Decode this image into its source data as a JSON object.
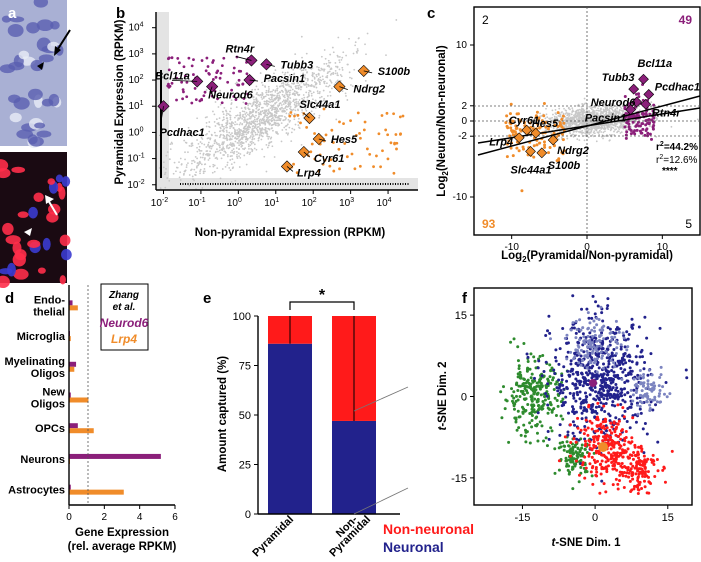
{
  "panels": {
    "a": "a",
    "b": "b",
    "c": "c",
    "d": "d",
    "e": "e",
    "f": "f"
  },
  "colors": {
    "purple": "#8b1f7a",
    "orange": "#f08c2a",
    "gray": "#c8c8c8",
    "red": "#ff1a1a",
    "navy": "#22228c",
    "green": "#2e8b2e",
    "light_navy": "#7c84c0"
  },
  "chart_data": [
    {
      "id": "b",
      "type": "scatter",
      "xlabel": "Non-pyramidal Expression (RPKM)",
      "ylabel": "Pyramidal Expression (RPKM)",
      "x_ticks": [
        "10^-2",
        "10^-1",
        "10^0",
        "10^1",
        "10^2",
        "10^3",
        "10^4"
      ],
      "x_tick_base": [
        "10",
        "10",
        "10",
        "10",
        "10",
        "10",
        "10"
      ],
      "x_tick_exp": [
        "-2",
        "-1",
        "0",
        "1",
        "2",
        "3",
        "4"
      ],
      "y_ticks": [
        "10^-2",
        "10^-1",
        "10^0",
        "10^1",
        "10^2",
        "10^3",
        "10^4"
      ],
      "y_tick_base": [
        "10",
        "10",
        "10",
        "10",
        "10",
        "10",
        "10"
      ],
      "y_tick_exp": [
        "-2",
        "-1",
        "0",
        "1",
        "2",
        "3",
        "4"
      ],
      "xlim_log10": [
        -2.2,
        4.8
      ],
      "ylim_log10": [
        -2.2,
        4.6
      ],
      "highlighted_genes": [
        {
          "name": "Rtn4r",
          "x_log10": 0.35,
          "y_log10": 2.75,
          "group": "neuronal"
        },
        {
          "name": "Tubb3",
          "x_log10": 0.75,
          "y_log10": 2.6,
          "group": "neuronal"
        },
        {
          "name": "Bcl11a",
          "x_log10": -1.1,
          "y_log10": 1.95,
          "group": "neuronal"
        },
        {
          "name": "Pacsin1",
          "x_log10": 0.3,
          "y_log10": 2.0,
          "group": "neuronal"
        },
        {
          "name": "Neurod6",
          "x_log10": -0.7,
          "y_log10": 1.75,
          "group": "neuronal"
        },
        {
          "name": "Pcdhac1",
          "x_log10": -2.0,
          "y_log10": 1.0,
          "group": "neuronal"
        },
        {
          "name": "S100b",
          "x_log10": 3.35,
          "y_log10": 2.35,
          "group": "non-neuronal"
        },
        {
          "name": "Ndrg2",
          "x_log10": 2.7,
          "y_log10": 1.75,
          "group": "non-neuronal"
        },
        {
          "name": "Slc44a1",
          "x_log10": 1.9,
          "y_log10": 0.55,
          "group": "non-neuronal"
        },
        {
          "name": "Hes5",
          "x_log10": 2.15,
          "y_log10": -0.25,
          "group": "non-neuronal"
        },
        {
          "name": "Cyr61",
          "x_log10": 1.75,
          "y_log10": -0.75,
          "group": "non-neuronal"
        },
        {
          "name": "Lrp4",
          "x_log10": 1.3,
          "y_log10": -1.3,
          "group": "non-neuronal"
        }
      ]
    },
    {
      "id": "c",
      "type": "scatter",
      "xlabel": "Log2(Pyramidal/Non-pyramidal)",
      "xlabel_main": "Log",
      "xlabel_sub": "2",
      "xlabel_tail": "(Pyramidal/Non-pyramidal)",
      "ylabel": "Log2(Neuron/Non-neuronal)",
      "ylabel_main": "Log",
      "ylabel_sub": "2",
      "ylabel_tail": "(Neuron/Non-neuronal)",
      "x_ticks": [
        -10,
        0,
        10
      ],
      "y_ticks": [
        -10,
        -2,
        0,
        2,
        10
      ],
      "xlim": [
        -15,
        15
      ],
      "ylim": [
        -15,
        15
      ],
      "quadrant_counts": {
        "q2": "2",
        "q1": "49",
        "q3": "93",
        "q4": "5"
      },
      "r2_labels": {
        "r2_a_main": "r",
        "r2_a_sup": "2",
        "r2_a_val": "=44.2%",
        "r2_b_main": "r",
        "r2_b_sup": "2",
        "r2_b_val": "=12.6%",
        "sig": "****"
      },
      "highlighted_genes": [
        {
          "name": "Bcl11a",
          "x": 7.5,
          "y": 5.5,
          "group": "neuronal"
        },
        {
          "name": "Tubb3",
          "x": 6.2,
          "y": 4.2,
          "group": "neuronal"
        },
        {
          "name": "Pcdhac1",
          "x": 8.2,
          "y": 3.5,
          "group": "neuronal"
        },
        {
          "name": "Neurod6",
          "x": 6.6,
          "y": 2.5,
          "group": "neuronal"
        },
        {
          "name": "Rtn4r",
          "x": 7.8,
          "y": 2.2,
          "group": "neuronal"
        },
        {
          "name": "Pacsin1",
          "x": 5.8,
          "y": 1.5,
          "group": "neuronal"
        },
        {
          "name": "Cyr61",
          "x": -8.0,
          "y": -1.2,
          "group": "non-neuronal"
        },
        {
          "name": "Hes5",
          "x": -6.8,
          "y": -1.6,
          "group": "non-neuronal"
        },
        {
          "name": "Lrp4",
          "x": -9.0,
          "y": -2.2,
          "group": "non-neuronal"
        },
        {
          "name": "Ndrg2",
          "x": -4.5,
          "y": -2.5,
          "group": "non-neuronal"
        },
        {
          "name": "Slc44a1",
          "x": -7.5,
          "y": -4.0,
          "group": "non-neuronal"
        },
        {
          "name": "S100b",
          "x": -6.0,
          "y": -4.2,
          "group": "non-neuronal"
        }
      ]
    },
    {
      "id": "d",
      "type": "bar",
      "orientation": "horizontal",
      "categories": [
        "Endo-thelial",
        "Microglia",
        "Myelinating Oligos",
        "New Oligos",
        "OPCs",
        "Neurons",
        "Astrocytes"
      ],
      "category_lines": [
        [
          "Endo-",
          "thelial"
        ],
        [
          "Microglia"
        ],
        [
          "Myelinating",
          "Oligos"
        ],
        [
          "New",
          "Oligos"
        ],
        [
          "OPCs"
        ],
        [
          "Neurons"
        ],
        [
          "Astrocytes"
        ]
      ],
      "series": [
        {
          "name": "Neurod6",
          "values": [
            0.2,
            0.05,
            0.4,
            0.1,
            0.5,
            5.2,
            0.1
          ]
        },
        {
          "name": "Lrp4",
          "values": [
            0.5,
            0.1,
            0.3,
            1.1,
            1.4,
            0.05,
            3.1
          ]
        }
      ],
      "legend_title_1": "Zhang",
      "legend_title_2": "et al.",
      "xlabel_1": "Gene Expression",
      "xlabel_2": "(rel. average RPKM)",
      "x_ticks": [
        "0",
        "2",
        "4",
        "6"
      ],
      "xlim": [
        0,
        6
      ],
      "reference_line": 1
    },
    {
      "id": "e",
      "type": "bar",
      "stacked": true,
      "categories": [
        "Pyramidal",
        "Non-Pyramidal"
      ],
      "category_lines": [
        [
          "Pyramidal"
        ],
        [
          "Non-",
          "Pyramidal"
        ]
      ],
      "series": [
        {
          "name": "Neuronal",
          "values": [
            86,
            47
          ]
        },
        {
          "name": "Non-neuronal",
          "values": [
            14,
            53
          ]
        }
      ],
      "ylabel": "Amount captured (%)",
      "y_ticks": [
        "0",
        "25",
        "50",
        "75",
        "100"
      ],
      "ylim": [
        0,
        100
      ],
      "significance": "*"
    },
    {
      "id": "f",
      "type": "scatter",
      "xlabel_main": "t",
      "xlabel_tail": "-SNE Dim. 1",
      "ylabel_main": "t",
      "ylabel_tail": "-SNE Dim. 2",
      "x_ticks": [
        "-15",
        "0",
        "15"
      ],
      "y_ticks": [
        "-15",
        "0",
        "15"
      ],
      "xlim": [
        -25,
        20
      ],
      "ylim": [
        -20,
        20
      ],
      "clusters": [
        {
          "name": "green-1",
          "cx": -13,
          "cy": 0,
          "sx": 3.0,
          "sy": 3.5,
          "n": 260,
          "color": "green"
        },
        {
          "name": "green-2",
          "cx": -4,
          "cy": -11,
          "sx": 1.8,
          "sy": 1.8,
          "n": 110,
          "color": "green"
        },
        {
          "name": "navy",
          "cx": 1,
          "cy": 3,
          "sx": 5,
          "sy": 5.5,
          "n": 620,
          "color": "navy"
        },
        {
          "name": "light-navy-1",
          "cx": 0,
          "cy": 10,
          "sx": 3,
          "sy": 2.5,
          "n": 120,
          "color": "light_navy"
        },
        {
          "name": "light-navy-2",
          "cx": 11,
          "cy": 1,
          "sx": 1.8,
          "sy": 1.8,
          "n": 80,
          "color": "light_navy"
        },
        {
          "name": "red-1",
          "cx": 2,
          "cy": -9,
          "sx": 3,
          "sy": 3,
          "n": 230,
          "color": "red"
        },
        {
          "name": "red-2",
          "cx": 8,
          "cy": -13,
          "sx": 2.4,
          "sy": 2.4,
          "n": 150,
          "color": "red"
        }
      ]
    }
  ],
  "legends": {
    "neurod6": "Neurod6",
    "lrp4": "Lrp4",
    "non_neuronal": "Non-neuronal",
    "neuronal": "Neuronal"
  }
}
